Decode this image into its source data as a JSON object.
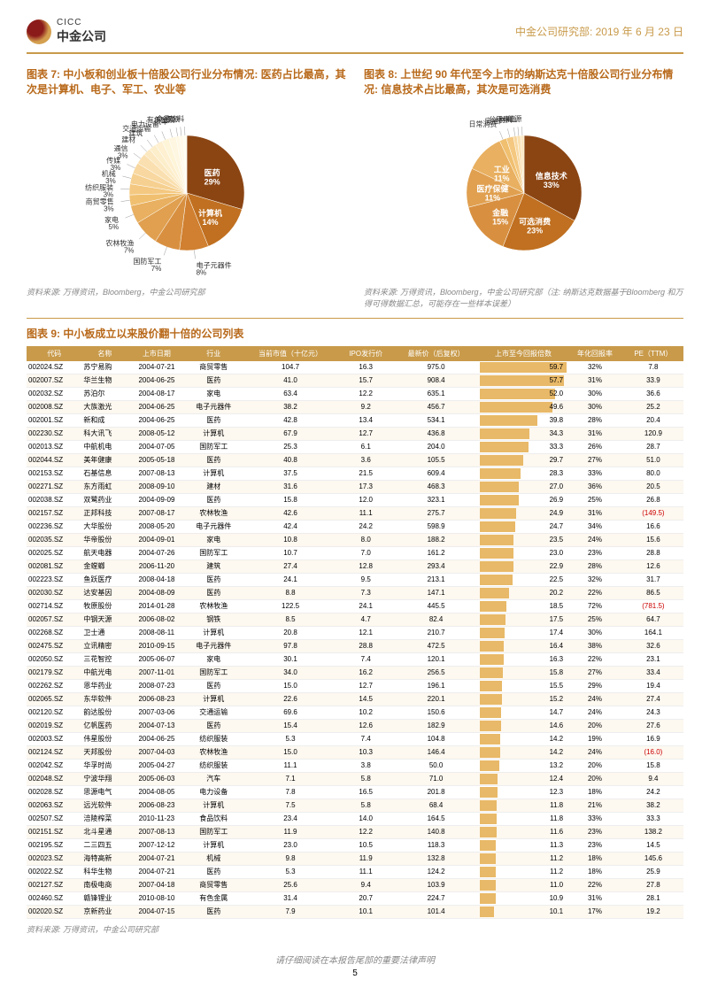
{
  "header": {
    "company_cn": "中金公司",
    "company_en": "CICC",
    "right_text": "中金公司研究部: 2019 年 6 月 23 日"
  },
  "chart7": {
    "title": "图表 7: 中小板和创业板十倍股公司行业分布情况: 医药占比最高，其次是计算机、电子、军工、农业等",
    "source": "资料来源: 万得资讯，Bloomberg，中金公司研究部",
    "slices": [
      {
        "label": "医药",
        "pct": 29,
        "color": "#8b4513"
      },
      {
        "label": "计算机",
        "pct": 14,
        "color": "#c07020"
      },
      {
        "label": "电子元器件",
        "pct": 8,
        "color": "#d08030"
      },
      {
        "label": "国防军工",
        "pct": 7,
        "color": "#d89040"
      },
      {
        "label": "农林牧渔",
        "pct": 7,
        "color": "#e0a050"
      },
      {
        "label": "家电",
        "pct": 5,
        "color": "#e8b060"
      },
      {
        "label": "商贸零售",
        "pct": 3,
        "color": "#f0c070"
      },
      {
        "label": "纺织服装",
        "pct": 3,
        "color": "#f4c880"
      },
      {
        "label": "机械",
        "pct": 3,
        "color": "#f6d090"
      },
      {
        "label": "传媒",
        "pct": 3,
        "color": "#f8d8a0"
      },
      {
        "label": "通信",
        "pct": 3,
        "color": "#fae0b0"
      },
      {
        "label": "建材",
        "pct": 2,
        "color": "#fce8c0"
      },
      {
        "label": "建筑",
        "pct": 2,
        "color": "#fdeecb"
      },
      {
        "label": "交通运输",
        "pct": 2,
        "color": "#fef0d0"
      },
      {
        "label": "电力设备",
        "pct": 2,
        "color": "#fef4d8"
      },
      {
        "label": "汽车",
        "pct": 2,
        "color": "#fef6e0"
      },
      {
        "label": "有色金属",
        "pct": 1,
        "color": "#fff8e5"
      },
      {
        "label": "钢铁",
        "pct": 1,
        "color": "#fffaea"
      },
      {
        "label": "食品饮料",
        "pct": 1,
        "color": "#fffcef"
      }
    ]
  },
  "chart8": {
    "title": "图表 8: 上世纪 90 年代至今上市的纳斯达克十倍股公司行业分布情况: 信息技术占比最高，其次是可选消费",
    "source": "资料来源: 万得资讯，Bloomberg，中金公司研究部（注: 纳斯达克数据基于Bloomberg 和万得可得数据汇总，可能存在一些样本误差）",
    "slices": [
      {
        "label": "信息技术",
        "pct": 33,
        "color": "#8b4513"
      },
      {
        "label": "可选消费",
        "pct": 23,
        "color": "#c07020"
      },
      {
        "label": "金融",
        "pct": 15,
        "color": "#d89040"
      },
      {
        "label": "医疗保健",
        "pct": 11,
        "color": "#e0a050"
      },
      {
        "label": "工业",
        "pct": 11,
        "color": "#e8b060"
      },
      {
        "label": "日常消费",
        "pct": 2,
        "color": "#f0c070"
      },
      {
        "label": "房地产",
        "pct": 2,
        "color": "#f4c880"
      },
      {
        "label": "材料",
        "pct": 1,
        "color": "#f8d8a0"
      },
      {
        "label": "公用事业",
        "pct": 1,
        "color": "#fae0b0"
      },
      {
        "label": "能源",
        "pct": 1,
        "color": "#fce8c0"
      }
    ]
  },
  "table9": {
    "title": "图表 9: 中小板成立以来股价翻十倍的公司列表",
    "source": "资料来源: 万得资讯，中金公司研究部",
    "headers": [
      "代码",
      "名称",
      "上市日期",
      "行业",
      "当前市值（十亿元）",
      "IPO发行价",
      "最新价（后复权）",
      "上市至今回报倍数",
      "年化回报率",
      "PE（TTM）"
    ],
    "rows": [
      [
        "002024.SZ",
        "苏宁易购",
        "2004-07-21",
        "商贸零售",
        "104.7",
        "16.3",
        "975.0",
        "59.7",
        "32%",
        "7.8"
      ],
      [
        "002007.SZ",
        "华兰生物",
        "2004-06-25",
        "医药",
        "41.0",
        "15.7",
        "908.4",
        "57.7",
        "31%",
        "33.9"
      ],
      [
        "002032.SZ",
        "苏泊尔",
        "2004-08-17",
        "家电",
        "63.4",
        "12.2",
        "635.1",
        "52.0",
        "30%",
        "36.6"
      ],
      [
        "002008.SZ",
        "大族激光",
        "2004-06-25",
        "电子元器件",
        "38.2",
        "9.2",
        "456.7",
        "49.6",
        "30%",
        "25.2"
      ],
      [
        "002001.SZ",
        "新和成",
        "2004-06-25",
        "医药",
        "42.8",
        "13.4",
        "534.1",
        "39.8",
        "28%",
        "20.4"
      ],
      [
        "002230.SZ",
        "科大讯飞",
        "2008-05-12",
        "计算机",
        "67.9",
        "12.7",
        "436.8",
        "34.3",
        "31%",
        "120.9"
      ],
      [
        "002013.SZ",
        "中航机电",
        "2004-07-05",
        "国防军工",
        "25.3",
        "6.1",
        "204.0",
        "33.3",
        "26%",
        "28.7"
      ],
      [
        "002044.SZ",
        "美年健康",
        "2005-05-18",
        "医药",
        "40.8",
        "3.6",
        "105.5",
        "29.7",
        "27%",
        "51.0"
      ],
      [
        "002153.SZ",
        "石基信息",
        "2007-08-13",
        "计算机",
        "37.5",
        "21.5",
        "609.4",
        "28.3",
        "33%",
        "80.0"
      ],
      [
        "002271.SZ",
        "东方雨虹",
        "2008-09-10",
        "建材",
        "31.6",
        "17.3",
        "468.3",
        "27.0",
        "36%",
        "20.5"
      ],
      [
        "002038.SZ",
        "双鹭药业",
        "2004-09-09",
        "医药",
        "15.8",
        "12.0",
        "323.1",
        "26.9",
        "25%",
        "26.8"
      ],
      [
        "002157.SZ",
        "正邦科技",
        "2007-08-17",
        "农林牧渔",
        "42.6",
        "11.1",
        "275.7",
        "24.9",
        "31%",
        "(149.5)"
      ],
      [
        "002236.SZ",
        "大华股份",
        "2008-05-20",
        "电子元器件",
        "42.4",
        "24.2",
        "598.9",
        "24.7",
        "34%",
        "16.6"
      ],
      [
        "002035.SZ",
        "华帝股份",
        "2004-09-01",
        "家电",
        "10.8",
        "8.0",
        "188.2",
        "23.5",
        "24%",
        "15.6"
      ],
      [
        "002025.SZ",
        "航天电器",
        "2004-07-26",
        "国防军工",
        "10.7",
        "7.0",
        "161.2",
        "23.0",
        "23%",
        "28.8"
      ],
      [
        "002081.SZ",
        "金螳螂",
        "2006-11-20",
        "建筑",
        "27.4",
        "12.8",
        "293.4",
        "22.9",
        "28%",
        "12.6"
      ],
      [
        "002223.SZ",
        "鱼跃医疗",
        "2008-04-18",
        "医药",
        "24.1",
        "9.5",
        "213.1",
        "22.5",
        "32%",
        "31.7"
      ],
      [
        "002030.SZ",
        "达安基因",
        "2004-08-09",
        "医药",
        "8.8",
        "7.3",
        "147.1",
        "20.2",
        "22%",
        "86.5"
      ],
      [
        "002714.SZ",
        "牧原股份",
        "2014-01-28",
        "农林牧渔",
        "122.5",
        "24.1",
        "445.5",
        "18.5",
        "72%",
        "(781.5)"
      ],
      [
        "002057.SZ",
        "中钢天源",
        "2006-08-02",
        "钢铁",
        "8.5",
        "4.7",
        "82.4",
        "17.5",
        "25%",
        "64.7"
      ],
      [
        "002268.SZ",
        "卫士通",
        "2008-08-11",
        "计算机",
        "20.8",
        "12.1",
        "210.7",
        "17.4",
        "30%",
        "164.1"
      ],
      [
        "002475.SZ",
        "立讯精密",
        "2010-09-15",
        "电子元器件",
        "97.8",
        "28.8",
        "472.5",
        "16.4",
        "38%",
        "32.6"
      ],
      [
        "002050.SZ",
        "三花智控",
        "2005-06-07",
        "家电",
        "30.1",
        "7.4",
        "120.1",
        "16.3",
        "22%",
        "23.1"
      ],
      [
        "002179.SZ",
        "中航光电",
        "2007-11-01",
        "国防军工",
        "34.0",
        "16.2",
        "256.5",
        "15.8",
        "27%",
        "33.4"
      ],
      [
        "002262.SZ",
        "恩华药业",
        "2008-07-23",
        "医药",
        "15.0",
        "12.7",
        "196.1",
        "15.5",
        "29%",
        "19.4"
      ],
      [
        "002065.SZ",
        "东华软件",
        "2006-08-23",
        "计算机",
        "22.6",
        "14.5",
        "220.1",
        "15.2",
        "24%",
        "27.4"
      ],
      [
        "002120.SZ",
        "韵达股份",
        "2007-03-06",
        "交通运输",
        "69.6",
        "10.2",
        "150.6",
        "14.7",
        "24%",
        "24.3"
      ],
      [
        "002019.SZ",
        "亿帆医药",
        "2004-07-13",
        "医药",
        "15.4",
        "12.6",
        "182.9",
        "14.6",
        "20%",
        "27.6"
      ],
      [
        "002003.SZ",
        "伟星股份",
        "2004-06-25",
        "纺织服装",
        "5.3",
        "7.4",
        "104.8",
        "14.2",
        "19%",
        "16.9"
      ],
      [
        "002124.SZ",
        "天邦股份",
        "2007-04-03",
        "农林牧渔",
        "15.0",
        "10.3",
        "146.4",
        "14.2",
        "24%",
        "(16.0)"
      ],
      [
        "002042.SZ",
        "华孚时尚",
        "2005-04-27",
        "纺织服装",
        "11.1",
        "3.8",
        "50.0",
        "13.2",
        "20%",
        "15.8"
      ],
      [
        "002048.SZ",
        "宁波华翔",
        "2005-06-03",
        "汽车",
        "7.1",
        "5.8",
        "71.0",
        "12.4",
        "20%",
        "9.4"
      ],
      [
        "002028.SZ",
        "思源电气",
        "2004-08-05",
        "电力设备",
        "7.8",
        "16.5",
        "201.8",
        "12.3",
        "18%",
        "24.2"
      ],
      [
        "002063.SZ",
        "远光软件",
        "2006-08-23",
        "计算机",
        "7.5",
        "5.8",
        "68.4",
        "11.8",
        "21%",
        "38.2"
      ],
      [
        "002507.SZ",
        "涪陵榨菜",
        "2010-11-23",
        "食品饮料",
        "23.4",
        "14.0",
        "164.5",
        "11.8",
        "33%",
        "33.3"
      ],
      [
        "002151.SZ",
        "北斗星通",
        "2007-08-13",
        "国防军工",
        "11.9",
        "12.2",
        "140.8",
        "11.6",
        "23%",
        "138.2"
      ],
      [
        "002195.SZ",
        "二三四五",
        "2007-12-12",
        "计算机",
        "23.0",
        "10.5",
        "118.3",
        "11.3",
        "23%",
        "14.5"
      ],
      [
        "002023.SZ",
        "海特高新",
        "2004-07-21",
        "机械",
        "9.8",
        "11.9",
        "132.8",
        "11.2",
        "18%",
        "145.6"
      ],
      [
        "002022.SZ",
        "科华生物",
        "2004-07-21",
        "医药",
        "5.3",
        "11.1",
        "124.2",
        "11.2",
        "18%",
        "25.9"
      ],
      [
        "002127.SZ",
        "南极电商",
        "2007-04-18",
        "商贸零售",
        "25.6",
        "9.4",
        "103.9",
        "11.0",
        "22%",
        "27.8"
      ],
      [
        "002460.SZ",
        "赣锋锂业",
        "2010-08-10",
        "有色金属",
        "31.4",
        "20.7",
        "224.7",
        "10.9",
        "31%",
        "28.1"
      ],
      [
        "002020.SZ",
        "京新药业",
        "2004-07-15",
        "医药",
        "7.9",
        "10.1",
        "101.4",
        "10.1",
        "17%",
        "19.2"
      ]
    ]
  },
  "footer": {
    "note": "请仔细阅读在本报告尾部的重要法律声明",
    "page": "5"
  }
}
